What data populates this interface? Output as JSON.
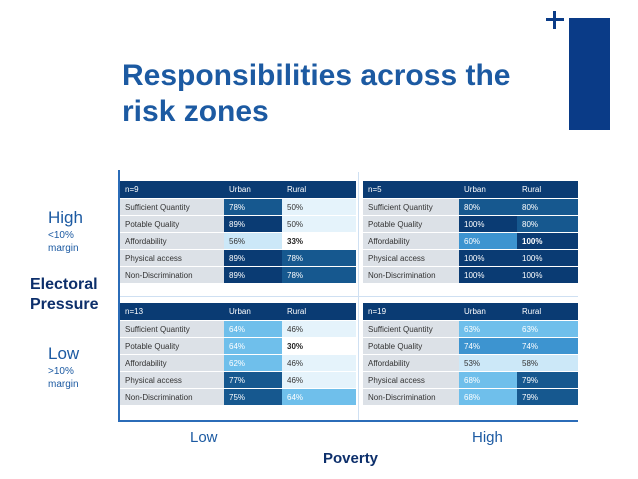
{
  "title": "Responsibilities across the risk zones",
  "y_axis": {
    "title": "Electoral Pressure",
    "high": "High",
    "high_sub": "<10% margin",
    "low": "Low",
    "low_sub": ">10% margin"
  },
  "x_axis": {
    "title": "Poverty",
    "low": "Low",
    "high": "High"
  },
  "quadrants": {
    "top_left": {
      "n": "n=9",
      "col1": "Urban",
      "col2": "Rural",
      "rows": [
        {
          "label": "Sufficient Quantity",
          "urban": "78%",
          "rural": "50%"
        },
        {
          "label": "Potable Quality",
          "urban": "89%",
          "rural": "50%"
        },
        {
          "label": "Affordability",
          "urban": "56%",
          "rural": "33%"
        },
        {
          "label": "Physical access",
          "urban": "89%",
          "rural": "78%"
        },
        {
          "label": "Non-Discrimination",
          "urban": "89%",
          "rural": "78%"
        }
      ]
    },
    "top_right": {
      "n": "n=5",
      "col1": "Urban",
      "col2": "Rural",
      "rows": [
        {
          "label": "Sufficient Quantity",
          "urban": "80%",
          "rural": "80%"
        },
        {
          "label": "Potable Quality",
          "urban": "100%",
          "rural": "80%"
        },
        {
          "label": "Affordability",
          "urban": "60%",
          "rural": "100%"
        },
        {
          "label": "Physical access",
          "urban": "100%",
          "rural": "100%"
        },
        {
          "label": "Non-Discrimination",
          "urban": "100%",
          "rural": "100%"
        }
      ]
    },
    "bottom_left": {
      "n": "n=13",
      "col1": "Urban",
      "col2": "Rural",
      "rows": [
        {
          "label": "Sufficient Quantity",
          "urban": "64%",
          "rural": "46%"
        },
        {
          "label": "Potable Quality",
          "urban": "64%",
          "rural": "30%"
        },
        {
          "label": "Affordability",
          "urban": "62%",
          "rural": "46%"
        },
        {
          "label": "Physical access",
          "urban": "77%",
          "rural": "46%"
        },
        {
          "label": "Non-Discrimination",
          "urban": "75%",
          "rural": "64%"
        }
      ]
    },
    "bottom_right": {
      "n": "n=19",
      "col1": "Urban",
      "col2": "Rural",
      "rows": [
        {
          "label": "Sufficient Quantity",
          "urban": "63%",
          "rural": "63%"
        },
        {
          "label": "Potable Quality",
          "urban": "74%",
          "rural": "74%"
        },
        {
          "label": "Affordability",
          "urban": "53%",
          "rural": "58%"
        },
        {
          "label": "Physical access",
          "urban": "68%",
          "rural": "79%"
        },
        {
          "label": "Non-Discrimination",
          "urban": "68%",
          "rural": "79%"
        }
      ]
    }
  }
}
